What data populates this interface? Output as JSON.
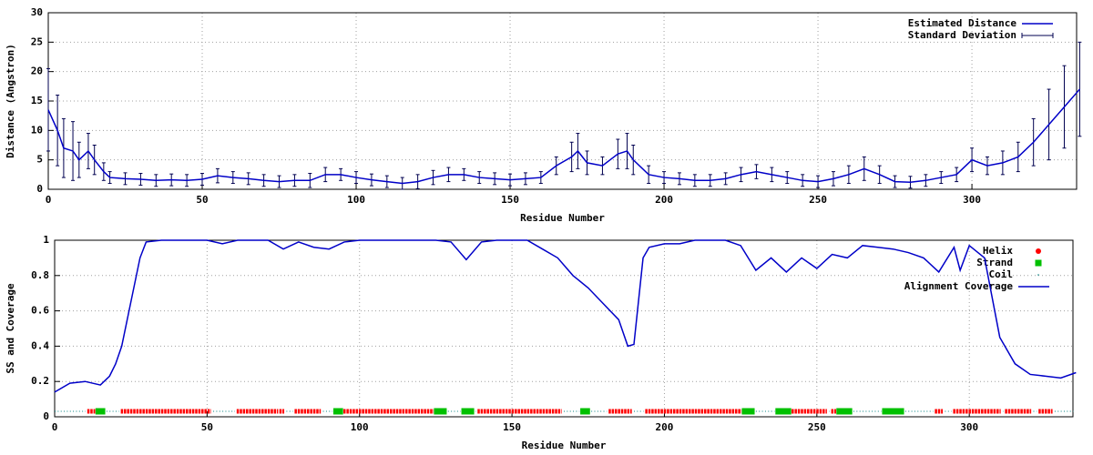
{
  "chart_data": [
    {
      "type": "line",
      "xlabel": "Residue Number",
      "ylabel": "Distance (Angstron)",
      "xlim": [
        0,
        334
      ],
      "ylim": [
        0,
        30
      ],
      "xticks": [
        0,
        50,
        100,
        150,
        200,
        250,
        300
      ],
      "yticks": [
        0,
        5,
        10,
        15,
        20,
        25,
        30
      ],
      "grid": true,
      "legend": "top-right",
      "x": [
        0,
        3,
        5,
        8,
        10,
        13,
        15,
        18,
        20,
        25,
        30,
        35,
        40,
        45,
        50,
        55,
        60,
        65,
        70,
        75,
        80,
        85,
        90,
        95,
        100,
        105,
        110,
        115,
        120,
        125,
        130,
        135,
        140,
        145,
        150,
        155,
        160,
        165,
        170,
        172,
        175,
        180,
        185,
        188,
        190,
        195,
        200,
        205,
        210,
        215,
        220,
        225,
        230,
        235,
        240,
        245,
        250,
        255,
        260,
        265,
        270,
        275,
        280,
        285,
        290,
        295,
        300,
        305,
        310,
        315,
        320,
        325,
        330,
        335
      ],
      "series": [
        {
          "name": "Estimated Distance",
          "color": "#0000c8",
          "values": [
            13.5,
            10,
            7,
            6.5,
            5,
            6.5,
            5,
            3,
            2,
            1.8,
            1.7,
            1.5,
            1.6,
            1.5,
            1.7,
            2.3,
            2,
            1.8,
            1.5,
            1.3,
            1.5,
            1.5,
            2.5,
            2.5,
            2,
            1.6,
            1.3,
            1,
            1.3,
            2,
            2.5,
            2.5,
            2,
            1.8,
            1.6,
            1.8,
            2,
            4,
            5.5,
            6.5,
            4.5,
            4,
            6,
            6.5,
            5,
            2.5,
            2,
            1.8,
            1.5,
            1.5,
            1.8,
            2.5,
            3,
            2.5,
            2,
            1.5,
            1.3,
            1.8,
            2.5,
            3.5,
            2.5,
            1.3,
            1.2,
            1.5,
            2,
            2.5,
            5,
            4,
            4.5,
            5.5,
            8,
            11,
            14,
            17
          ]
        },
        {
          "name": "Standard Deviation",
          "color": "#000050",
          "values": [
            7,
            6,
            5,
            5,
            3,
            3,
            2.5,
            1.5,
            1,
            1,
            1,
            1,
            1,
            1,
            1,
            1.2,
            1,
            1,
            1,
            1,
            1,
            1.2,
            1.2,
            1,
            1,
            1,
            1,
            1,
            1.2,
            1.2,
            1.2,
            1,
            1,
            1,
            1,
            1,
            1,
            1.5,
            2.5,
            3,
            2,
            1.5,
            2.5,
            3,
            2.5,
            1.5,
            1,
            1,
            1,
            1,
            1,
            1.2,
            1.2,
            1.2,
            1,
            1,
            1,
            1.2,
            1.5,
            2,
            1.5,
            1,
            1,
            1,
            1,
            1.2,
            2,
            1.5,
            2,
            2.5,
            4,
            6,
            7,
            8
          ]
        }
      ]
    },
    {
      "type": "line",
      "xlabel": "Residue Number",
      "ylabel": "SS and Coverage",
      "xlim": [
        0,
        334
      ],
      "ylim": [
        0,
        1
      ],
      "xticks": [
        0,
        50,
        100,
        150,
        200,
        250,
        300
      ],
      "yticks": [
        0,
        0.2,
        0.4,
        0.6,
        0.8,
        1
      ],
      "grid": true,
      "legend": "top-right",
      "x": [
        0,
        5,
        10,
        15,
        18,
        20,
        22,
        25,
        28,
        30,
        35,
        40,
        45,
        50,
        55,
        60,
        65,
        70,
        75,
        80,
        85,
        90,
        95,
        100,
        105,
        110,
        115,
        120,
        125,
        130,
        135,
        140,
        145,
        150,
        155,
        160,
        165,
        170,
        175,
        180,
        185,
        188,
        190,
        193,
        195,
        200,
        205,
        210,
        215,
        220,
        225,
        230,
        235,
        240,
        245,
        250,
        255,
        260,
        265,
        270,
        275,
        280,
        285,
        290,
        295,
        297,
        300,
        305,
        310,
        315,
        320,
        325,
        330,
        335
      ],
      "series": [
        {
          "name": "Helix",
          "color": "#ff0000",
          "ranges": [
            [
              11,
              13
            ],
            [
              22,
              51
            ],
            [
              60,
              73
            ],
            [
              74,
              75
            ],
            [
              79,
              87
            ],
            [
              95,
              124
            ],
            [
              139,
              166
            ],
            [
              182,
              189
            ],
            [
              194,
              225
            ],
            [
              242,
              253
            ],
            [
              255,
              256
            ],
            [
              289,
              291
            ],
            [
              295,
              310
            ],
            [
              312,
              320
            ],
            [
              323,
              327
            ]
          ]
        },
        {
          "name": "Strand",
          "color": "#00c000",
          "ranges": [
            [
              14,
              16
            ],
            [
              92,
              94
            ],
            [
              125,
              128
            ],
            [
              134,
              137
            ],
            [
              173,
              175
            ],
            [
              226,
              229
            ],
            [
              237,
              241
            ],
            [
              257,
              261
            ],
            [
              272,
              278
            ]
          ]
        },
        {
          "name": "Coil",
          "color": "#008080",
          "ranges": [
            [
              0,
              10
            ],
            [
              17,
              21
            ],
            [
              52,
              59
            ],
            [
              76,
              78
            ],
            [
              88,
              91
            ],
            [
              129,
              133
            ],
            [
              138,
              138
            ],
            [
              167,
              172
            ],
            [
              176,
              181
            ],
            [
              190,
              193
            ],
            [
              230,
              236
            ],
            [
              254,
              254
            ],
            [
              262,
              271
            ],
            [
              279,
              288
            ],
            [
              292,
              294
            ],
            [
              311,
              311
            ],
            [
              321,
              322
            ],
            [
              328,
              334
            ]
          ]
        },
        {
          "name": "Alignment Coverage",
          "color": "#0000c8",
          "values": [
            0.14,
            0.19,
            0.2,
            0.18,
            0.23,
            0.3,
            0.4,
            0.65,
            0.9,
            0.99,
            1,
            1,
            1,
            1,
            0.98,
            1,
            1,
            1,
            0.95,
            0.99,
            0.96,
            0.95,
            0.99,
            1,
            1,
            1,
            1,
            1,
            1,
            0.99,
            0.89,
            0.99,
            1,
            1,
            1,
            0.95,
            0.9,
            0.8,
            0.73,
            0.64,
            0.55,
            0.4,
            0.41,
            0.9,
            0.96,
            0.98,
            0.98,
            1,
            1,
            1,
            0.97,
            0.83,
            0.9,
            0.82,
            0.9,
            0.84,
            0.92,
            0.9,
            0.97,
            0.96,
            0.95,
            0.93,
            0.9,
            0.82,
            0.96,
            0.83,
            0.97,
            0.9,
            0.45,
            0.3,
            0.24,
            0.23,
            0.22,
            0.25
          ]
        }
      ]
    }
  ]
}
